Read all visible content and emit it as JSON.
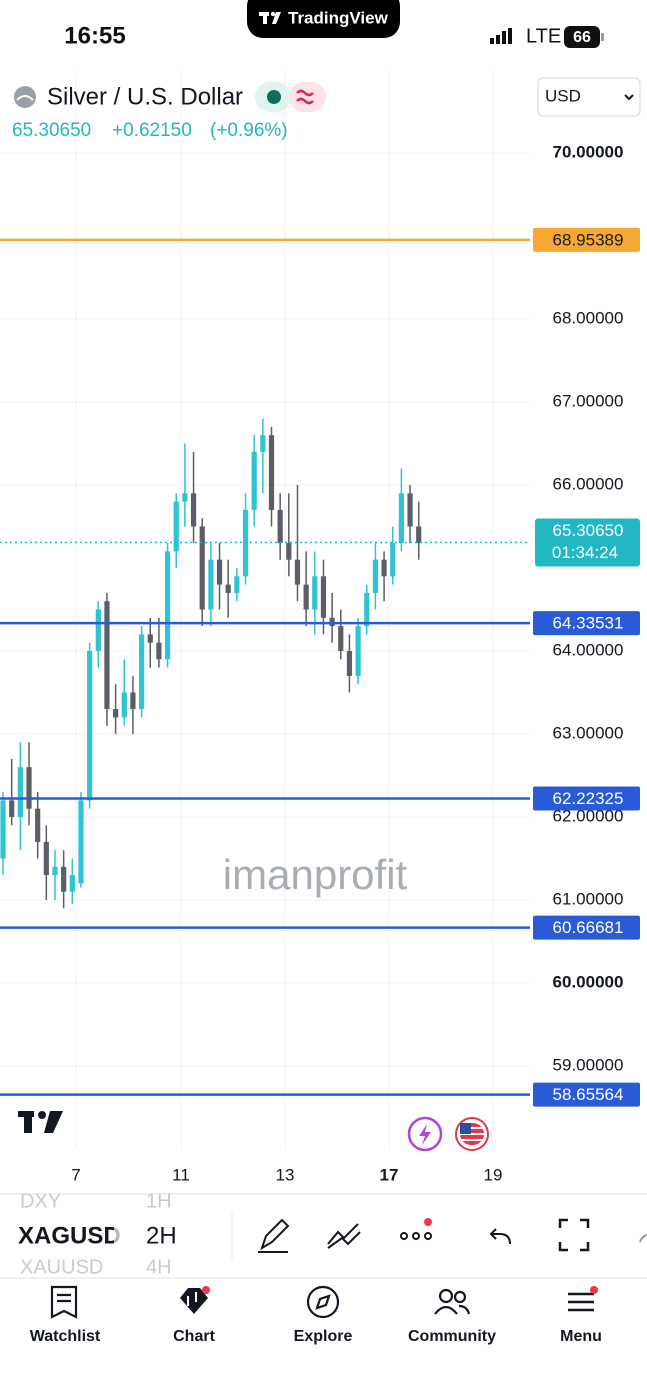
{
  "status_bar": {
    "time": "16:55",
    "app": "TradingView",
    "network": "LTE",
    "battery": "66"
  },
  "header": {
    "symbol_name": "Silver / U.S. Dollar",
    "last": "65.30650",
    "change": "+0.62150",
    "change_pct": "(+0.96%)",
    "currency": "USD"
  },
  "chart_data": {
    "type": "candlestick",
    "up_color": "#2ec4d3",
    "down_color": "#5b5e66",
    "open": [
      61.5,
      62.2,
      62.0,
      62.6,
      62.1,
      61.7,
      61.3,
      61.4,
      61.1,
      61.2,
      62.2,
      64.0,
      64.6,
      63.3,
      63.2,
      63.5,
      63.3,
      64.2,
      64.1,
      63.9,
      65.2,
      65.8,
      65.9,
      65.5,
      64.5,
      65.1,
      64.8,
      64.7,
      64.9,
      65.7,
      66.4,
      66.6,
      65.7,
      65.3,
      65.1,
      64.8,
      64.5,
      64.9,
      64.4,
      64.3,
      64.0,
      63.7,
      64.3,
      64.7,
      65.1,
      64.9,
      65.3,
      65.9,
      65.5
    ],
    "high": [
      62.3,
      62.7,
      62.9,
      62.9,
      62.3,
      61.9,
      61.6,
      61.6,
      61.5,
      62.3,
      64.1,
      64.6,
      64.7,
      63.6,
      63.9,
      63.7,
      64.3,
      64.4,
      64.4,
      65.3,
      65.9,
      66.5,
      66.4,
      65.6,
      65.3,
      65.3,
      65.1,
      65.0,
      65.9,
      66.6,
      66.8,
      66.7,
      65.9,
      65.9,
      66.0,
      65.2,
      65.2,
      65.1,
      64.7,
      64.5,
      64.2,
      64.4,
      64.8,
      65.3,
      65.2,
      65.5,
      66.2,
      66.0,
      65.8
    ],
    "low": [
      61.3,
      61.9,
      61.6,
      61.9,
      61.5,
      61.0,
      61.0,
      60.9,
      60.95,
      61.15,
      62.1,
      63.8,
      63.1,
      63.0,
      63.1,
      63.0,
      63.2,
      63.8,
      63.8,
      63.8,
      65.0,
      65.5,
      65.3,
      64.3,
      64.3,
      64.5,
      64.4,
      64.6,
      64.8,
      65.5,
      65.9,
      65.5,
      65.1,
      64.9,
      64.6,
      64.3,
      64.2,
      64.2,
      64.1,
      63.9,
      63.5,
      63.6,
      64.2,
      64.5,
      64.6,
      64.8,
      65.2,
      65.3,
      65.1
    ],
    "close": [
      62.2,
      62.0,
      62.6,
      62.1,
      61.7,
      61.3,
      61.4,
      61.1,
      61.3,
      62.2,
      64.0,
      64.5,
      63.3,
      63.2,
      63.5,
      63.3,
      64.2,
      64.1,
      63.9,
      65.2,
      65.8,
      65.9,
      65.5,
      64.5,
      65.1,
      64.8,
      64.7,
      64.9,
      65.7,
      66.4,
      66.6,
      65.7,
      65.3,
      65.1,
      64.8,
      64.5,
      64.9,
      64.4,
      64.3,
      64.0,
      63.7,
      64.3,
      64.7,
      65.1,
      64.9,
      65.3,
      65.9,
      65.5,
      65.3
    ],
    "xlim": [
      -0.35,
      60.85
    ],
    "xticks": [
      {
        "value": 8.43,
        "label": "7"
      },
      {
        "value": 20.55,
        "label": "11"
      },
      {
        "value": 32.56,
        "label": "13"
      },
      {
        "value": 44.57,
        "label": "17"
      },
      {
        "value": 56.58,
        "label": "19"
      }
    ],
    "ylim": [
      58,
      71
    ],
    "yticks": [
      {
        "value": 70,
        "label": "70.00000"
      },
      {
        "value": 68,
        "label": "68.00000"
      },
      {
        "value": 67,
        "label": "67.00000"
      },
      {
        "value": 66,
        "label": "66.00000"
      },
      {
        "value": 64,
        "label": "64.00000"
      },
      {
        "value": 63,
        "label": "63.00000"
      },
      {
        "value": 62,
        "label": "62.00000"
      },
      {
        "value": 61,
        "label": "61.00000"
      },
      {
        "value": 60,
        "label": "60.00000"
      },
      {
        "value": 59,
        "label": "59.00000"
      }
    ],
    "grid": true,
    "price_lines": [
      {
        "value": 68.95389,
        "color": "#f7a832",
        "text_color": "#1a1a1a"
      },
      {
        "value": 64.33531,
        "color": "#2a5bd7",
        "text_color": "#ffffff"
      },
      {
        "value": 62.22325,
        "color": "#2a5bd7",
        "text_color": "#ffffff"
      },
      {
        "value": 60.66681,
        "color": "#2a5bd7",
        "text_color": "#ffffff"
      },
      {
        "value": 58.65564,
        "color": "#2a5bd7",
        "text_color": "#ffffff"
      }
    ],
    "current_price": {
      "value": 65.3065,
      "label": "65.30650",
      "countdown": "01:34:24",
      "color": "#22b7c2"
    },
    "watermark": "imanprofit"
  },
  "toolbar": {
    "symbols": [
      "DXY",
      "XAGUSD",
      "XAUUSD"
    ],
    "intervals": [
      "1H",
      "2H",
      "4H"
    ]
  },
  "nav": [
    "Watchlist",
    "Chart",
    "Explore",
    "Community",
    "Menu"
  ]
}
